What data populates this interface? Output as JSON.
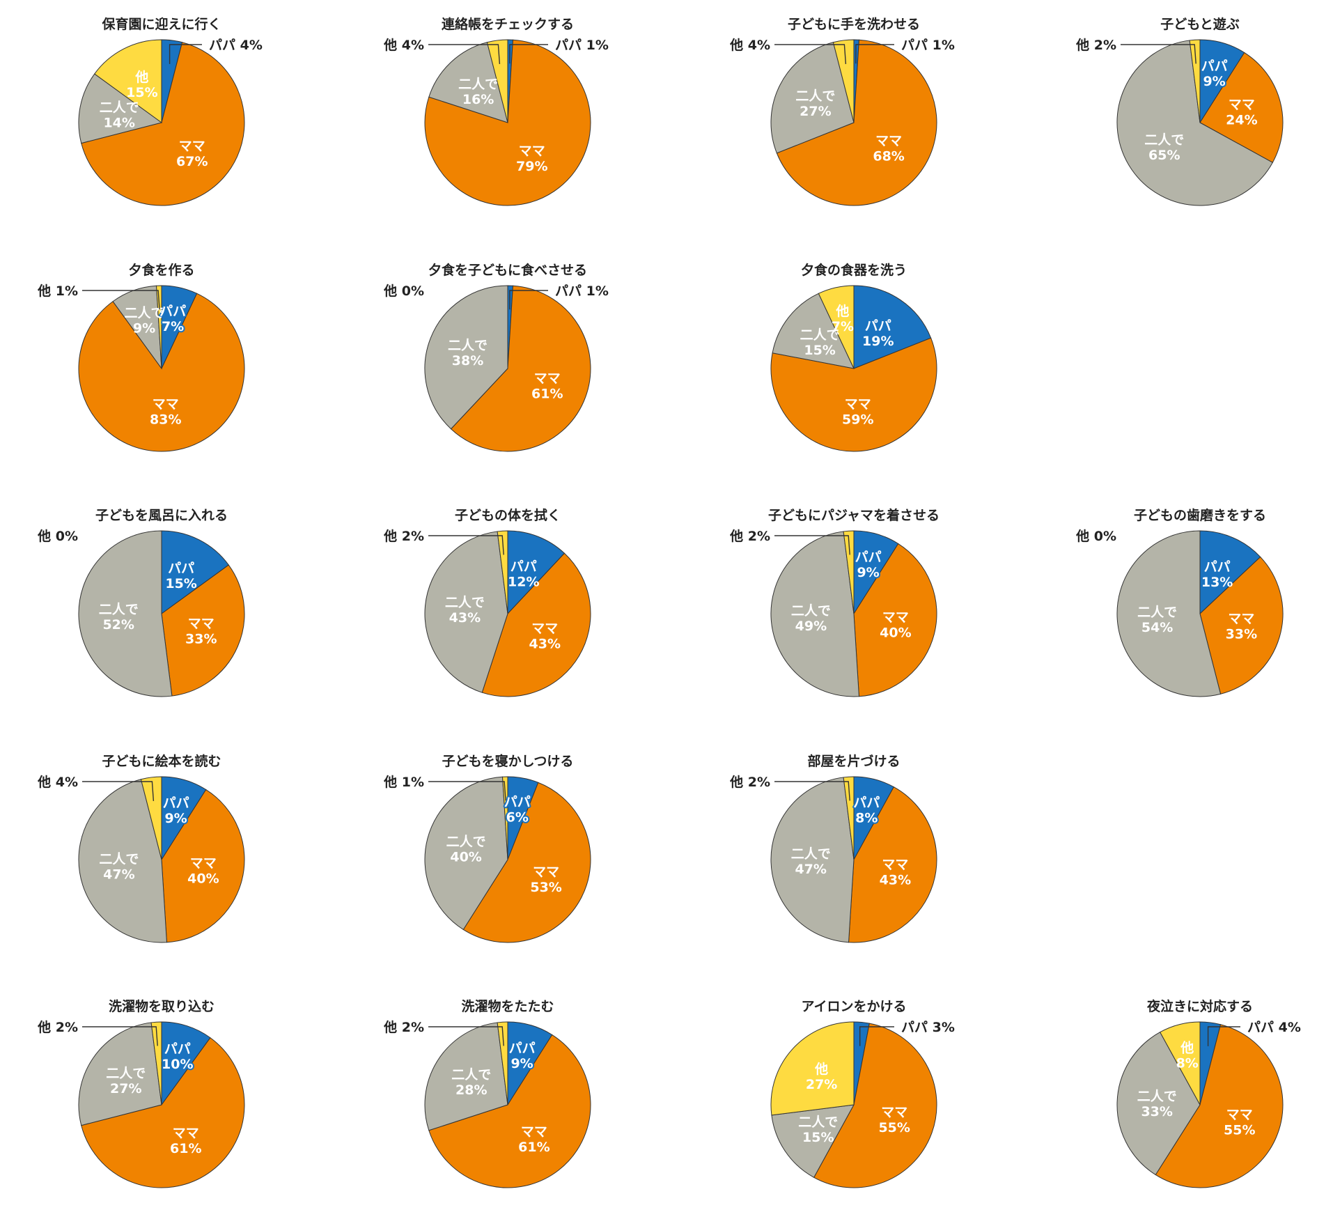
{
  "colors": {
    "papa": "#1a73c0",
    "mama": "#f08300",
    "futari": "#b4b4a8",
    "hoka": "#fedb41"
  },
  "labels": {
    "papa": "パパ",
    "mama": "ママ",
    "futari": "二人で",
    "hoka": "他"
  },
  "chart_data": [
    {
      "type": "pie",
      "title": "保育園に迎えに行く",
      "values": {
        "papa": 4,
        "mama": 67,
        "futari": 14,
        "hoka": 15
      }
    },
    {
      "type": "pie",
      "title": "連絡帳をチェックする",
      "values": {
        "papa": 1,
        "mama": 79,
        "futari": 16,
        "hoka": 4
      }
    },
    {
      "type": "pie",
      "title": "子どもに手を洗わせる",
      "values": {
        "papa": 1,
        "mama": 68,
        "futari": 27,
        "hoka": 4
      }
    },
    {
      "type": "pie",
      "title": "子どもと遊ぶ",
      "values": {
        "papa": 9,
        "mama": 24,
        "futari": 65,
        "hoka": 2
      }
    },
    {
      "type": "pie",
      "title": "夕食を作る",
      "values": {
        "papa": 7,
        "mama": 83,
        "futari": 9,
        "hoka": 1
      }
    },
    {
      "type": "pie",
      "title": "夕食を子どもに食べさせる",
      "values": {
        "papa": 1,
        "mama": 61,
        "futari": 38,
        "hoka": 0
      }
    },
    {
      "type": "pie",
      "title": "夕食の食器を洗う",
      "values": {
        "papa": 19,
        "mama": 59,
        "futari": 15,
        "hoka": 7
      }
    },
    {
      "type": "pie",
      "title": "子どもを風呂に入れる",
      "values": {
        "papa": 15,
        "mama": 33,
        "futari": 52,
        "hoka": 0
      }
    },
    {
      "type": "pie",
      "title": "子どもの体を拭く",
      "values": {
        "papa": 12,
        "mama": 43,
        "futari": 43,
        "hoka": 2
      }
    },
    {
      "type": "pie",
      "title": "子どもにパジャマを着させる",
      "values": {
        "papa": 9,
        "mama": 40,
        "futari": 49,
        "hoka": 2
      }
    },
    {
      "type": "pie",
      "title": "子どもの歯磨きをする",
      "values": {
        "papa": 13,
        "mama": 33,
        "futari": 54,
        "hoka": 0
      }
    },
    {
      "type": "pie",
      "title": "子どもに絵本を読む",
      "values": {
        "papa": 9,
        "mama": 40,
        "futari": 47,
        "hoka": 4
      }
    },
    {
      "type": "pie",
      "title": "子どもを寝かしつける",
      "values": {
        "papa": 6,
        "mama": 53,
        "futari": 40,
        "hoka": 1
      }
    },
    {
      "type": "pie",
      "title": "部屋を片づける",
      "values": {
        "papa": 8,
        "mama": 43,
        "futari": 47,
        "hoka": 2
      }
    },
    {
      "type": "pie",
      "title": "洗濯物を取り込む",
      "values": {
        "papa": 10,
        "mama": 61,
        "futari": 27,
        "hoka": 2
      }
    },
    {
      "type": "pie",
      "title": "洗濯物をたたむ",
      "values": {
        "papa": 9,
        "mama": 61,
        "futari": 28,
        "hoka": 2
      }
    },
    {
      "type": "pie",
      "title": "アイロンをかける",
      "values": {
        "papa": 3,
        "mama": 55,
        "futari": 15,
        "hoka": 27
      }
    },
    {
      "type": "pie",
      "title": "夜泣きに対応する",
      "values": {
        "papa": 4,
        "mama": 55,
        "futari": 33,
        "hoka": 8
      }
    }
  ]
}
